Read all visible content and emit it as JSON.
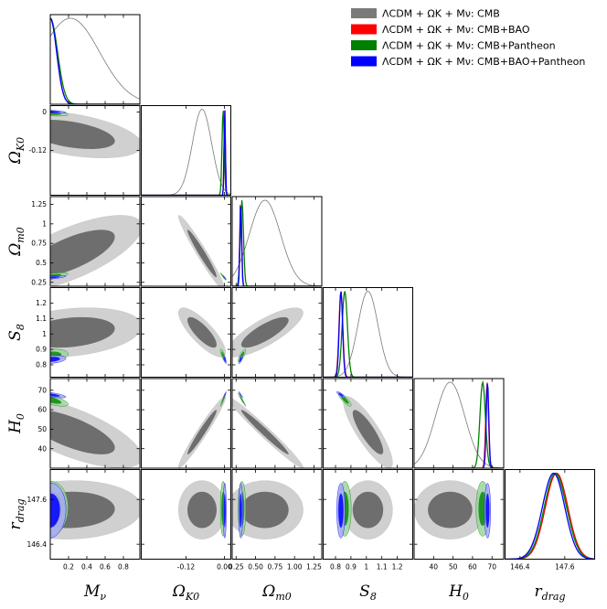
{
  "chart_data": {
    "type": "corner",
    "title": "",
    "params": [
      {
        "key": "Mnu",
        "label": "Mν",
        "range": [
          0.0,
          0.98
        ],
        "ticks": [
          0.2,
          0.4,
          0.6,
          0.8
        ],
        "tick_labels": [
          "0.2",
          "0.4",
          "0.6",
          "0.8"
        ]
      },
      {
        "key": "OK0",
        "label": "ΩK0",
        "range": [
          -0.26,
          0.02
        ],
        "ticks": [
          -0.12,
          0.0
        ],
        "tick_labels": [
          "-0.12",
          "0"
        ]
      },
      {
        "key": "Om0",
        "label": "Ωm0",
        "range": [
          0.2,
          1.35
        ],
        "ticks": [
          0.25,
          0.5,
          0.75,
          1.0,
          1.25
        ],
        "tick_labels": [
          "0.25",
          "0.5",
          "0.75",
          "1",
          "1.25"
        ]
      },
      {
        "key": "S8",
        "label": "S8",
        "range": [
          0.72,
          1.3
        ],
        "ticks": [
          0.8,
          0.9,
          1.0,
          1.1,
          1.2
        ],
        "tick_labels": [
          "0.8",
          "0.9",
          "1",
          "1.1",
          "1.2"
        ]
      },
      {
        "key": "H0",
        "label": "H0",
        "range": [
          30,
          76
        ],
        "ticks": [
          40,
          50,
          60,
          70
        ],
        "tick_labels": [
          "40",
          "50",
          "60",
          "70"
        ]
      },
      {
        "key": "rdrag",
        "label": "rdrag",
        "range": [
          146.0,
          148.4
        ],
        "ticks": [
          146.4,
          147.6
        ],
        "tick_labels": [
          "146.4",
          "147.6"
        ]
      }
    ],
    "xtick_labels_bottom": {
      "Mnu": [
        "0.2",
        "0.4",
        "0.6",
        "0.8"
      ],
      "OK0": [
        "-0.12",
        "0.00"
      ],
      "Om0": [
        "0.25",
        "0.50",
        "0.75",
        "1.00",
        "1.25"
      ],
      "S8": [
        "0.8",
        "0.9",
        "1",
        "1.1",
        "1.2"
      ],
      "H0": [
        "40",
        "50",
        "60",
        "70"
      ],
      "rdrag": [
        "146.4",
        "147.6"
      ]
    },
    "axis_labels": {
      "Mnu": "Mν",
      "OK0": "ΩK0",
      "Om0": "Ωm0",
      "S8": "S8",
      "H0": "H0",
      "rdrag": "rdrag"
    },
    "series": [
      {
        "name": "ΛCDM + ΩK + Mν: CMB",
        "color": "#7a7a7a",
        "mean": {
          "Mnu": 0.22,
          "OK0": -0.07,
          "Om0": 0.62,
          "S8": 1.01,
          "H0": 48.5,
          "rdrag": 147.32
        },
        "sigma": {
          "Mnu": 0.32,
          "OK0": 0.03,
          "Om0": 0.2,
          "S8": 0.065,
          "H0": 7.5,
          "rdrag": 0.32
        }
      },
      {
        "name": "ΛCDM + ΩK + Mν: CMB+BAO",
        "color": "#ff0000",
        "mean": {
          "Mnu": 0.0,
          "OK0": 0.001,
          "Om0": 0.31,
          "S8": 0.835,
          "H0": 67.5,
          "rdrag": 147.38
        },
        "sigma": {
          "Mnu": 0.07,
          "OK0": 0.002,
          "Om0": 0.012,
          "S8": 0.012,
          "H0": 0.7,
          "rdrag": 0.3
        }
      },
      {
        "name": "ΛCDM + ΩK + Mν: CMB+Pantheon",
        "color": "#008000",
        "mean": {
          "Mnu": 0.0,
          "OK0": -0.004,
          "Om0": 0.325,
          "S8": 0.86,
          "H0": 65.2,
          "rdrag": 147.35
        },
        "sigma": {
          "Mnu": 0.08,
          "OK0": 0.0035,
          "Om0": 0.02,
          "S8": 0.017,
          "H0": 1.4,
          "rdrag": 0.3
        }
      },
      {
        "name": "ΛCDM + ΩK + Mν: CMB+BAO+Pantheon",
        "color": "#0000ff",
        "mean": {
          "Mnu": 0.0,
          "OK0": 0.001,
          "Om0": 0.31,
          "S8": 0.835,
          "H0": 67.7,
          "rdrag": 147.3
        },
        "sigma": {
          "Mnu": 0.07,
          "OK0": 0.002,
          "Om0": 0.011,
          "S8": 0.011,
          "H0": 0.65,
          "rdrag": 0.3
        }
      }
    ],
    "legend_placement": "top-right",
    "grid": false
  }
}
